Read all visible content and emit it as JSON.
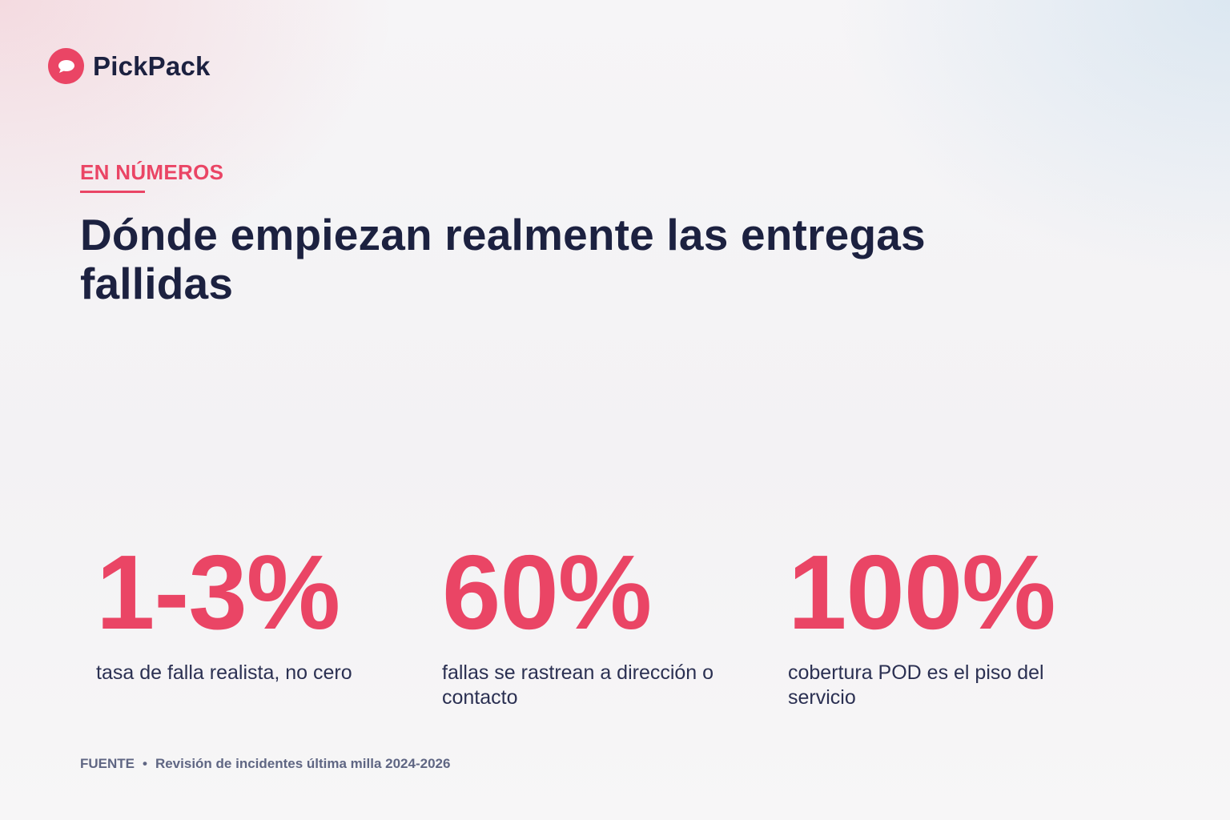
{
  "brand": {
    "name": "PickPack",
    "logo_icon": "speech-bubble-icon",
    "accent_color": "#ea4565"
  },
  "header": {
    "eyebrow": "EN NÚMEROS",
    "title": "Dónde empiezan realmente las entregas fallidas"
  },
  "stats": [
    {
      "value": "1-3%",
      "label": "tasa de falla realista, no cero"
    },
    {
      "value": "60%",
      "label": "fallas se rastrean a dirección o contacto"
    },
    {
      "value": "100%",
      "label": "cobertura POD es el piso del servicio"
    }
  ],
  "footer": {
    "source_label": "FUENTE",
    "separator": "•",
    "source_text": "Revisión de incidentes última milla 2024-2026"
  },
  "colors": {
    "accent": "#ea4565",
    "text_dark": "#1c2140",
    "muted": "#5f6683"
  }
}
